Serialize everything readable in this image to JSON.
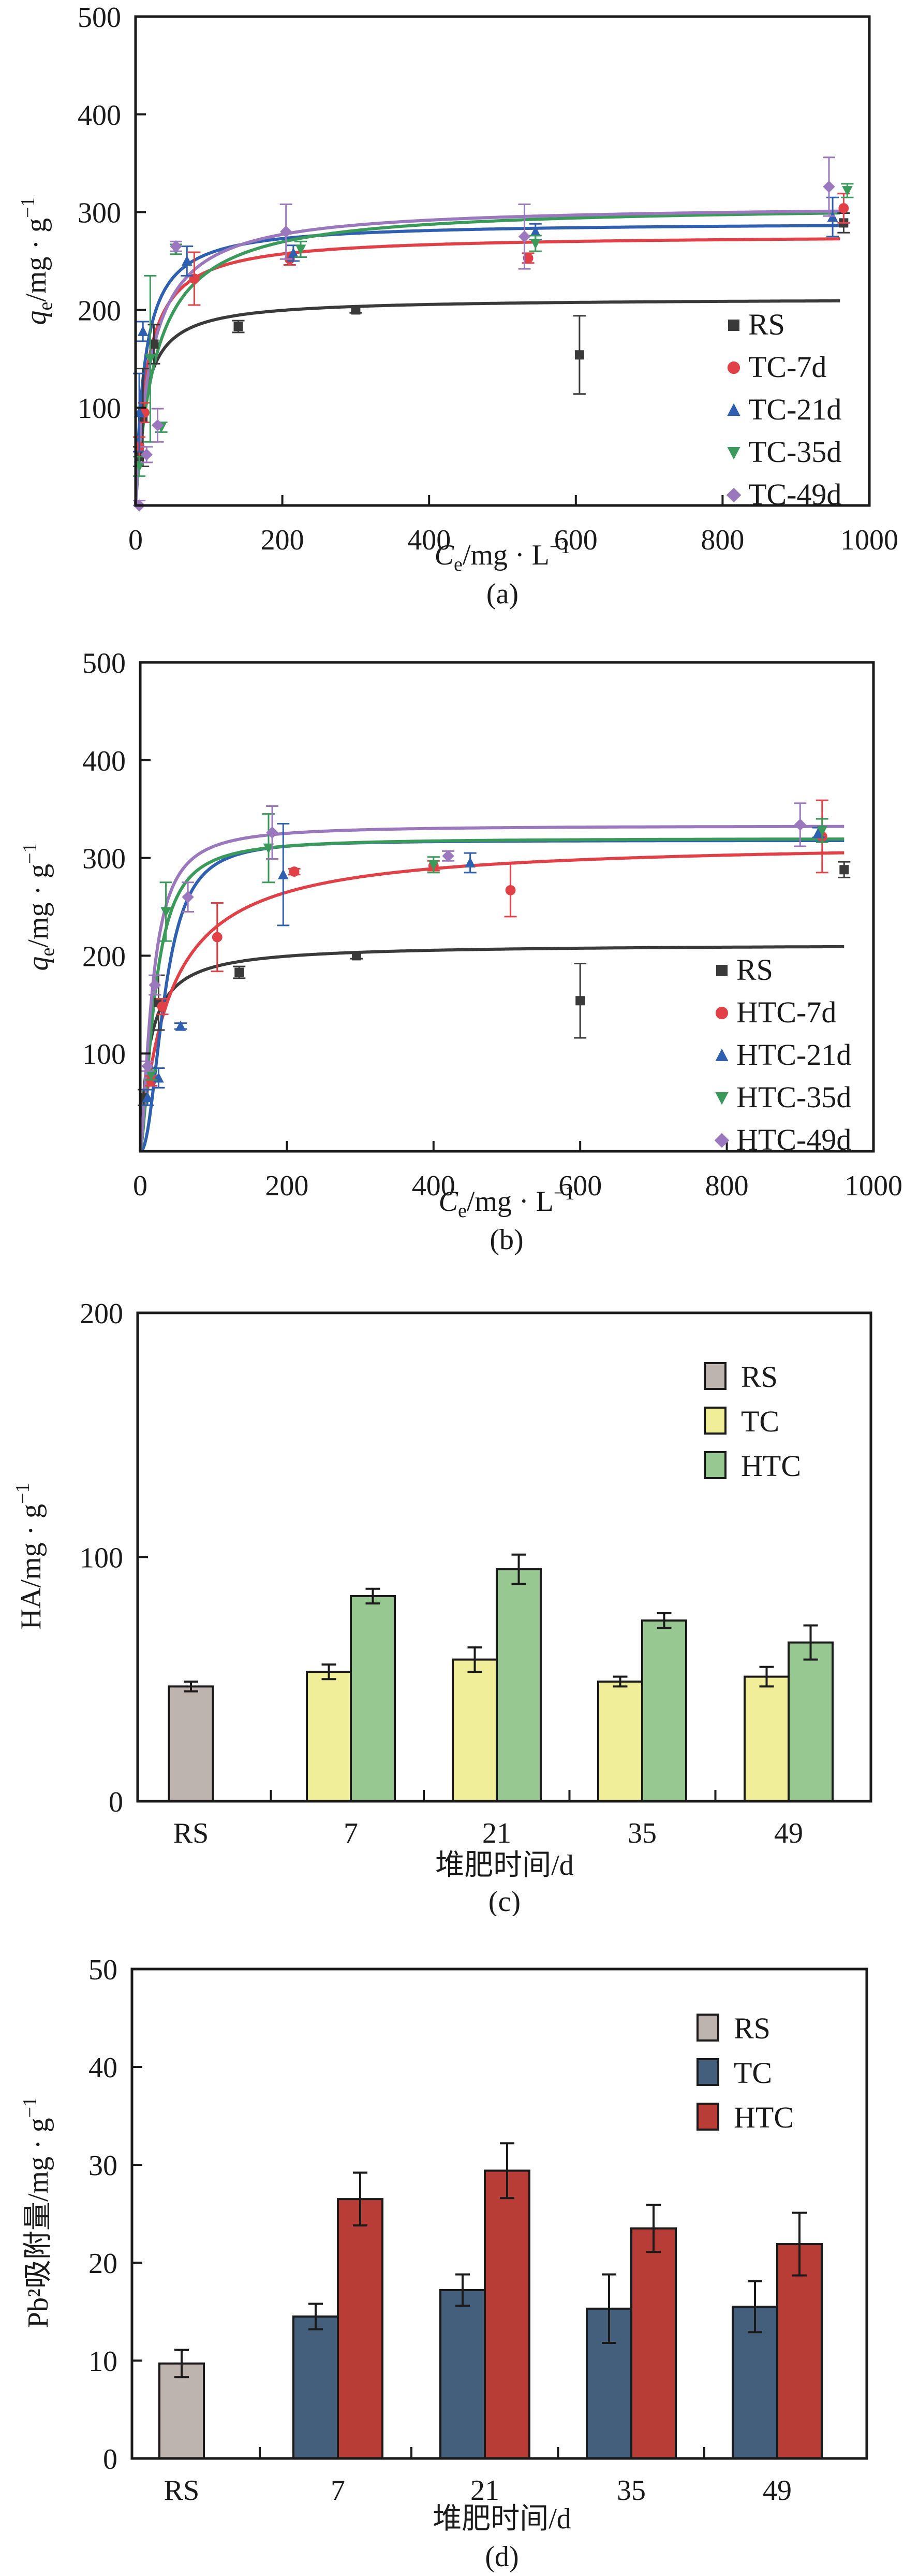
{
  "chart_data": [
    {
      "id": "a",
      "type": "scatter",
      "panel_label": "(a)",
      "xlabel_main": "C",
      "xlabel_sub": "e",
      "xlabel_rest": "/mg · L",
      "xlabel_sup": "−1",
      "ylabel_main": "q",
      "ylabel_sub": "e",
      "ylabel_rest": "/mg · g",
      "ylabel_sup": "−1",
      "xlim": [
        0,
        1000
      ],
      "ylim": [
        0,
        500
      ],
      "xticks": [
        0,
        200,
        400,
        600,
        800,
        1000
      ],
      "yticks": [
        100,
        200,
        300,
        400,
        500
      ],
      "xtick_labels": [
        "0",
        "200",
        "400",
        "600",
        "800",
        "1000"
      ],
      "ytick_labels": [
        "100",
        "200",
        "300",
        "400",
        "500"
      ],
      "legend": "bottom-right",
      "series": [
        {
          "name": "RS",
          "marker": "square",
          "color": "#3a3a3a",
          "fit": {
            "qmax": 212,
            "K": 0.08
          },
          "points": [
            [
              5,
              50,
              10
            ],
            [
              10,
              90,
              50
            ],
            [
              25,
              165,
              20
            ],
            [
              140,
              183,
              6
            ],
            [
              300,
              200,
              3
            ],
            [
              605,
              154,
              40
            ],
            [
              965,
              289,
              10
            ]
          ]
        },
        {
          "name": "TC-7d",
          "marker": "circle",
          "color": "#e04046",
          "fit": {
            "qmax": 277,
            "K": 0.065
          },
          "points": [
            [
              5,
              60,
              10
            ],
            [
              12,
              95,
              10
            ],
            [
              80,
              232,
              27
            ],
            [
              210,
              252,
              6
            ],
            [
              535,
              253,
              5
            ],
            [
              965,
              304,
              15
            ]
          ]
        },
        {
          "name": "TC-21d",
          "marker": "triangle-up",
          "color": "#2e5fb0",
          "fit": {
            "qmax": 290,
            "K": 0.08
          },
          "points": [
            [
              5,
              95,
              40
            ],
            [
              10,
              178,
              10
            ],
            [
              70,
              250,
              15
            ],
            [
              215,
              258,
              8
            ],
            [
              545,
              280,
              8
            ],
            [
              950,
              295,
              20
            ]
          ]
        },
        {
          "name": "TC-35d",
          "marker": "triangle-down",
          "color": "#3a9a5a",
          "fit": {
            "qmax": 308,
            "K": 0.035
          },
          "points": [
            [
              5,
              40,
              10
            ],
            [
              20,
              150,
              85
            ],
            [
              35,
              80,
              5
            ],
            [
              55,
              262,
              5
            ],
            [
              225,
              262,
              8
            ],
            [
              545,
              268,
              8
            ],
            [
              970,
              322,
              7
            ]
          ]
        },
        {
          "name": "TC-49d",
          "marker": "diamond",
          "color": "#9b78bd",
          "fit": {
            "qmax": 308,
            "K": 0.045
          },
          "points": [
            [
              5,
              0,
              5
            ],
            [
              15,
              52,
              8
            ],
            [
              30,
              82,
              17
            ],
            [
              55,
              265,
              5
            ],
            [
              205,
              280,
              28
            ],
            [
              530,
              275,
              33
            ],
            [
              945,
              326,
              30
            ]
          ]
        }
      ]
    },
    {
      "id": "b",
      "type": "scatter",
      "panel_label": "(b)",
      "xlabel_main": "C",
      "xlabel_sub": "e",
      "xlabel_rest": "/mg · L",
      "xlabel_sup": "−1",
      "ylabel_main": "q",
      "ylabel_sub": "e",
      "ylabel_rest": "/mg · g",
      "ylabel_sup": "−1",
      "xlim": [
        0,
        1000
      ],
      "ylim": [
        0,
        500
      ],
      "xticks": [
        0,
        200,
        400,
        600,
        800,
        1000
      ],
      "yticks": [
        100,
        200,
        300,
        400,
        500
      ],
      "xtick_labels": [
        "0",
        "200",
        "400",
        "600",
        "800",
        "1000"
      ],
      "ytick_labels": [
        "100",
        "200",
        "300",
        "400",
        "500"
      ],
      "legend": "bottom-right",
      "series": [
        {
          "name": "RS",
          "marker": "square",
          "color": "#3a3a3a",
          "fit": {
            "qmax": 212,
            "K": 0.08
          },
          "points": [
            [
              5,
              55,
              8
            ],
            [
              25,
              152,
              28
            ],
            [
              135,
              183,
              6
            ],
            [
              295,
              200,
              3
            ],
            [
              600,
              154,
              38
            ],
            [
              960,
              288,
              8
            ]
          ]
        },
        {
          "name": "HTC-7d",
          "marker": "circle",
          "color": "#e04046",
          "fit": {
            "qmax": 318,
            "K": 0.025
          },
          "points": [
            [
              15,
              72,
              5
            ],
            [
              30,
              148,
              8
            ],
            [
              105,
              219,
              35
            ],
            [
              210,
              286,
              3
            ],
            [
              400,
              292,
              5
            ],
            [
              505,
              267,
              27
            ],
            [
              930,
              322,
              37
            ]
          ]
        },
        {
          "name": "HTC-21d",
          "marker": "triangle-up",
          "color": "#2e5fb0",
          "fit": {
            "qmax": 318,
            "K": 0.03,
            "n": 2.2
          },
          "points": [
            [
              10,
              55,
              8
            ],
            [
              25,
              75,
              10
            ],
            [
              55,
              128,
              3
            ],
            [
              195,
              283,
              52
            ],
            [
              450,
              295,
              10
            ],
            [
              925,
              326,
              5
            ]
          ]
        },
        {
          "name": "HTC-35d",
          "marker": "triangle-down",
          "color": "#3a9a5a",
          "fit": {
            "qmax": 320,
            "K": 0.05,
            "n": 1.6
          },
          "points": [
            [
              15,
              78,
              5
            ],
            [
              35,
              245,
              30
            ],
            [
              175,
              310,
              35
            ],
            [
              400,
              293,
              8
            ],
            [
              930,
              328,
              12
            ]
          ]
        },
        {
          "name": "HTC-49d",
          "marker": "diamond",
          "color": "#9b78bd",
          "fit": {
            "qmax": 333,
            "K": 0.06,
            "n": 1.5
          },
          "points": [
            [
              10,
              87,
              5
            ],
            [
              20,
              170,
              10
            ],
            [
              65,
              260,
              15
            ],
            [
              180,
              326,
              27
            ],
            [
              420,
              302,
              5
            ],
            [
              900,
              334,
              22
            ]
          ]
        }
      ]
    },
    {
      "id": "c",
      "type": "bar",
      "panel_label": "(c)",
      "title": "",
      "xlabel": "堆肥时间/d",
      "ylabel": "HA/mg · g",
      "ylabel_sup": "−1",
      "ylim": [
        0,
        200
      ],
      "yticks": [
        0,
        100,
        200
      ],
      "ytick_labels": [
        "0",
        "100",
        "200"
      ],
      "categories": [
        "RS",
        "7",
        "21",
        "35",
        "49"
      ],
      "legend": "top-right",
      "series": [
        {
          "name": "RS",
          "color": "#bdb4b0",
          "values": [
            47,
            null,
            null,
            null,
            null
          ],
          "errors": [
            2,
            null,
            null,
            null,
            null
          ]
        },
        {
          "name": "TC",
          "color": "#f0ee99",
          "values": [
            null,
            53,
            58,
            49,
            51
          ],
          "errors": [
            null,
            3,
            5,
            2,
            4
          ]
        },
        {
          "name": "HTC",
          "color": "#98c891",
          "values": [
            null,
            84,
            95,
            74,
            65
          ],
          "errors": [
            null,
            3,
            6,
            3,
            7
          ]
        }
      ]
    },
    {
      "id": "d",
      "type": "bar",
      "panel_label": "(d)",
      "title": "",
      "xlabel": "堆肥时间/d",
      "ylabel": "Pb²吸附量/mg · g",
      "ylabel_sup": "−1",
      "ylim": [
        0,
        50
      ],
      "yticks": [
        0,
        10,
        20,
        30,
        40,
        50
      ],
      "ytick_labels": [
        "0",
        "10",
        "20",
        "30",
        "40",
        "50"
      ],
      "categories": [
        "RS",
        "7",
        "21",
        "35",
        "49"
      ],
      "legend": "top-right",
      "series": [
        {
          "name": "RS",
          "color": "#bdb4b0",
          "values": [
            9.7,
            null,
            null,
            null,
            null
          ],
          "errors": [
            1.4,
            null,
            null,
            null,
            null
          ]
        },
        {
          "name": "TC",
          "color": "#445f7c",
          "values": [
            null,
            14.5,
            17.2,
            15.3,
            15.5
          ],
          "errors": [
            null,
            1.3,
            1.6,
            3.5,
            2.6
          ]
        },
        {
          "name": "HTC",
          "color": "#b83d37",
          "values": [
            null,
            26.5,
            29.4,
            23.5,
            21.9
          ],
          "errors": [
            null,
            2.7,
            2.8,
            2.4,
            3.2
          ]
        }
      ]
    }
  ]
}
